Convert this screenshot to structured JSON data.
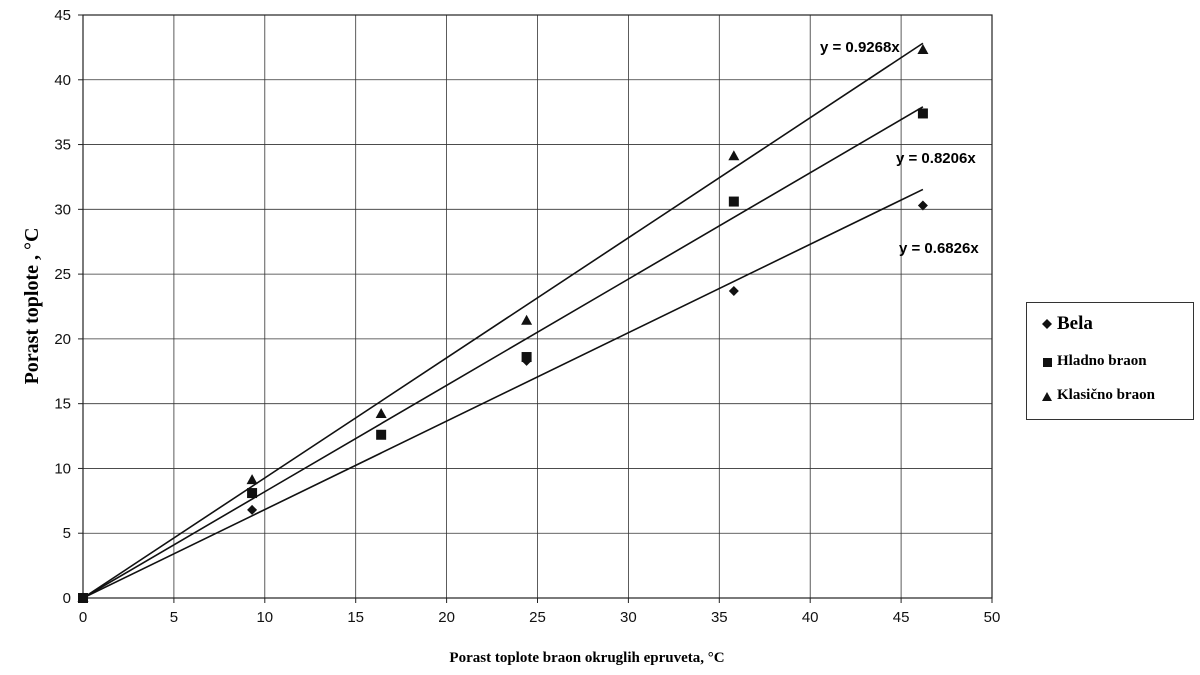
{
  "chart_data": {
    "type": "scatter",
    "xlabel": "Porast toplote braon okruglih epruveta, °C",
    "ylabel": "Porast toplote  , °C",
    "xlim": [
      0,
      50
    ],
    "ylim": [
      0,
      45
    ],
    "xticks": [
      0,
      5,
      10,
      15,
      20,
      25,
      30,
      35,
      40,
      45,
      50
    ],
    "yticks": [
      0,
      5,
      10,
      15,
      20,
      25,
      30,
      35,
      40,
      45
    ],
    "grid": true,
    "legend_position": "right",
    "series": [
      {
        "name": "Bela",
        "marker": "diamond",
        "points": [
          [
            0,
            0
          ],
          [
            9.3,
            6.8
          ],
          [
            24.4,
            18.3
          ],
          [
            35.8,
            23.7
          ],
          [
            46.2,
            30.3
          ]
        ],
        "trendline": {
          "slope": 0.6826,
          "label": "y = 0.6826x"
        }
      },
      {
        "name": "Hladno braon",
        "marker": "square",
        "points": [
          [
            0,
            0
          ],
          [
            9.3,
            8.1
          ],
          [
            16.4,
            12.6
          ],
          [
            24.4,
            18.6
          ],
          [
            35.8,
            30.6
          ],
          [
            46.2,
            37.4
          ]
        ],
        "trendline": {
          "slope": 0.8206,
          "label": "y = 0.8206x"
        }
      },
      {
        "name": "Klasično braon",
        "marker": "triangle",
        "points": [
          [
            0,
            0
          ],
          [
            9.3,
            9.1
          ],
          [
            16.4,
            14.2
          ],
          [
            24.4,
            21.4
          ],
          [
            35.8,
            34.1
          ],
          [
            46.2,
            42.3
          ]
        ],
        "trendline": {
          "slope": 0.9268,
          "label": "y = 0.9268x"
        }
      }
    ]
  },
  "legend": {
    "items": [
      {
        "label": "Bela",
        "marker": "diamond"
      },
      {
        "label": "Hladno braon",
        "marker": "square"
      },
      {
        "label": "Klasično braon",
        "marker": "triangle"
      }
    ]
  }
}
